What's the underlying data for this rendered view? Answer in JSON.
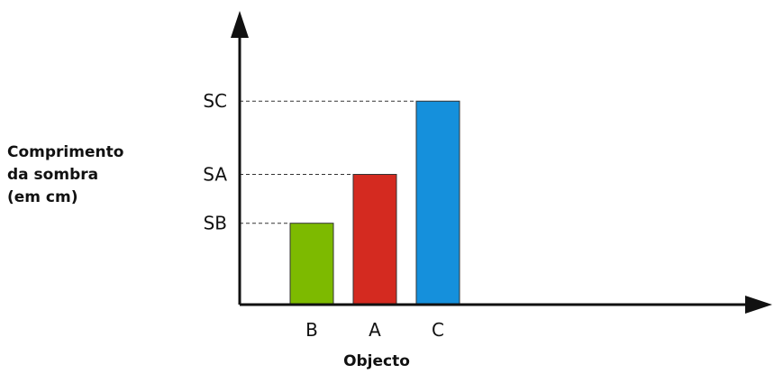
{
  "chart_data": {
    "type": "bar",
    "title": "",
    "xlabel": "Objecto",
    "ylabel_lines": [
      "Comprimento",
      "da sombra",
      "(em cm)"
    ],
    "categories": [
      "B",
      "A",
      "C"
    ],
    "value_labels": [
      "SB",
      "SA",
      "SC"
    ],
    "values": [
      1.0,
      1.6,
      2.5
    ],
    "ylim": [
      0,
      3.3
    ],
    "colors": [
      "#7dba00",
      "#d42a20",
      "#1590dc"
    ],
    "grid": false,
    "legend": "none",
    "reference_lines": "dashed"
  }
}
